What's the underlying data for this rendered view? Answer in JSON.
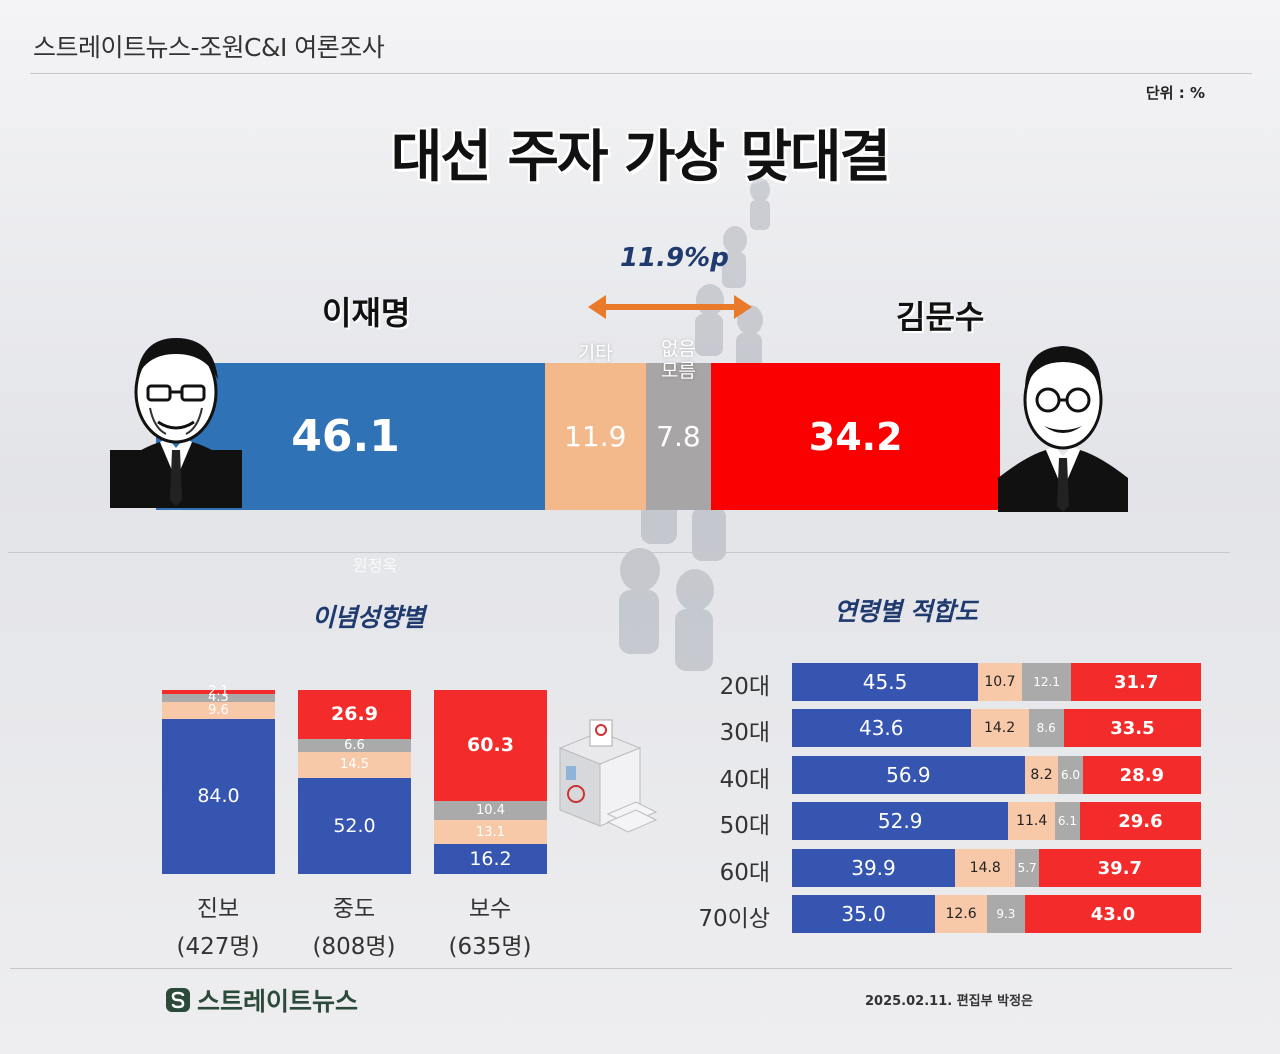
{
  "header": {
    "title": "스트레이트뉴스-조원C&I 여론조사",
    "unit": "단위 : %"
  },
  "main_title": "대선 주자 가상  맞대결",
  "watermark_text": "원정욱",
  "colors": {
    "lee": "#2f72b6",
    "other": "#f3b98b",
    "unknown": "#a7a5a5",
    "kim": "#fb0000",
    "blue2": "#3655b0",
    "peach2": "#f8c9a8",
    "gray2": "#aaaaaa",
    "red2": "#f32b2b"
  },
  "chart_data": [
    {
      "type": "bar",
      "title": "대선 주자 가상  맞대결",
      "orientation": "horizontal-stacked",
      "gap_label": "11.9%p",
      "candidates": {
        "left": "이재명",
        "right": "김문수"
      },
      "series": [
        {
          "name": "이재명",
          "value": 46.1,
          "label": ""
        },
        {
          "name": "기타",
          "value": 11.9,
          "label": "기타"
        },
        {
          "name": "없음 모름",
          "value": 7.8,
          "label": "없음\n모름"
        },
        {
          "name": "김문수",
          "value": 34.2,
          "label": ""
        }
      ]
    },
    {
      "type": "bar",
      "title": "이념성향별",
      "orientation": "vertical-stacked-100",
      "categories": [
        "진보",
        "중도",
        "보수"
      ],
      "sample_sizes": [
        "(427명)",
        "(808명)",
        "(635명)"
      ],
      "series": [
        {
          "name": "이재명",
          "values": [
            84.0,
            52.0,
            16.2
          ],
          "labels": [
            "84.0",
            "52.0",
            "16.2"
          ]
        },
        {
          "name": "기타",
          "values": [
            9.6,
            14.5,
            13.1
          ],
          "labels": [
            "9.6",
            "14.5",
            "13.1"
          ]
        },
        {
          "name": "없음 모름",
          "values": [
            4.3,
            6.6,
            10.4
          ],
          "labels": [
            "4.3",
            "6.6",
            "10.4"
          ]
        },
        {
          "name": "김문수",
          "values": [
            2.1,
            26.9,
            60.3
          ],
          "labels": [
            "2.1",
            "26.9",
            "60.3"
          ]
        }
      ]
    },
    {
      "type": "bar",
      "title": "연령별 적합도",
      "orientation": "horizontal-stacked-100",
      "categories": [
        "20대",
        "30대",
        "40대",
        "50대",
        "60대",
        "70이상"
      ],
      "series": [
        {
          "name": "이재명",
          "values": [
            45.5,
            43.6,
            56.9,
            52.9,
            39.9,
            35.0
          ],
          "labels": [
            "45.5",
            "43.6",
            "56.9",
            "52.9",
            "39.9",
            "35.0"
          ]
        },
        {
          "name": "기타",
          "values": [
            10.7,
            14.2,
            8.2,
            11.4,
            14.8,
            12.6
          ],
          "labels": [
            "10.7",
            "14.2",
            "8.2",
            "11.4",
            "14.8",
            "12.6"
          ]
        },
        {
          "name": "없음 모름",
          "values": [
            12.1,
            8.6,
            6.0,
            6.1,
            5.7,
            9.3
          ],
          "labels": [
            "12.1",
            "8.6",
            "6.0",
            "6.1",
            "5.7",
            "9.3"
          ]
        },
        {
          "name": "김문수",
          "values": [
            31.7,
            33.5,
            28.9,
            29.6,
            39.7,
            43.0
          ],
          "labels": [
            "31.7",
            "33.5",
            "28.9",
            "29.6",
            "39.7",
            "43.0"
          ]
        }
      ]
    }
  ],
  "footer": {
    "logo_text": "스트레이트뉴스",
    "credit": "2025.02.11. 편집부 박정은"
  }
}
